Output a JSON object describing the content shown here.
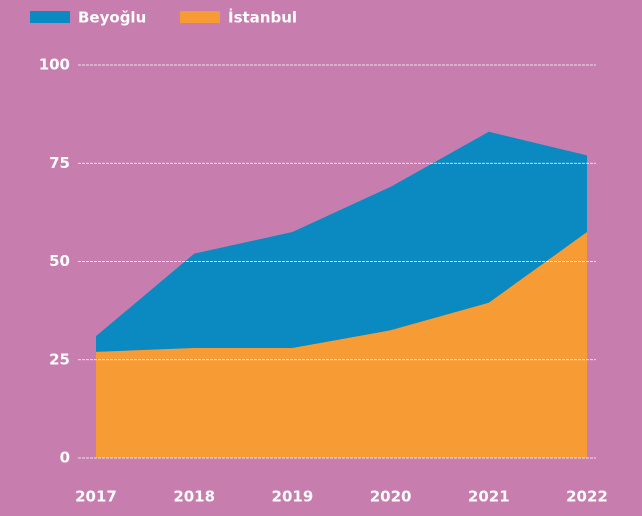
{
  "chart_data": {
    "type": "area",
    "x": [
      "2017",
      "2018",
      "2019",
      "2020",
      "2021",
      "2022"
    ],
    "series": [
      {
        "name": "Beyoğlu",
        "color": "#0b89c1",
        "values": [
          31,
          52,
          57.5,
          69,
          83,
          77
        ]
      },
      {
        "name": "İstanbul",
        "color": "#f79c35",
        "values": [
          27,
          28,
          28,
          32.5,
          39.5,
          57.5
        ]
      }
    ],
    "ylim": [
      0,
      100
    ],
    "yticks": [
      0,
      25,
      50,
      75,
      100
    ],
    "grid": true,
    "legend": "top-left"
  }
}
